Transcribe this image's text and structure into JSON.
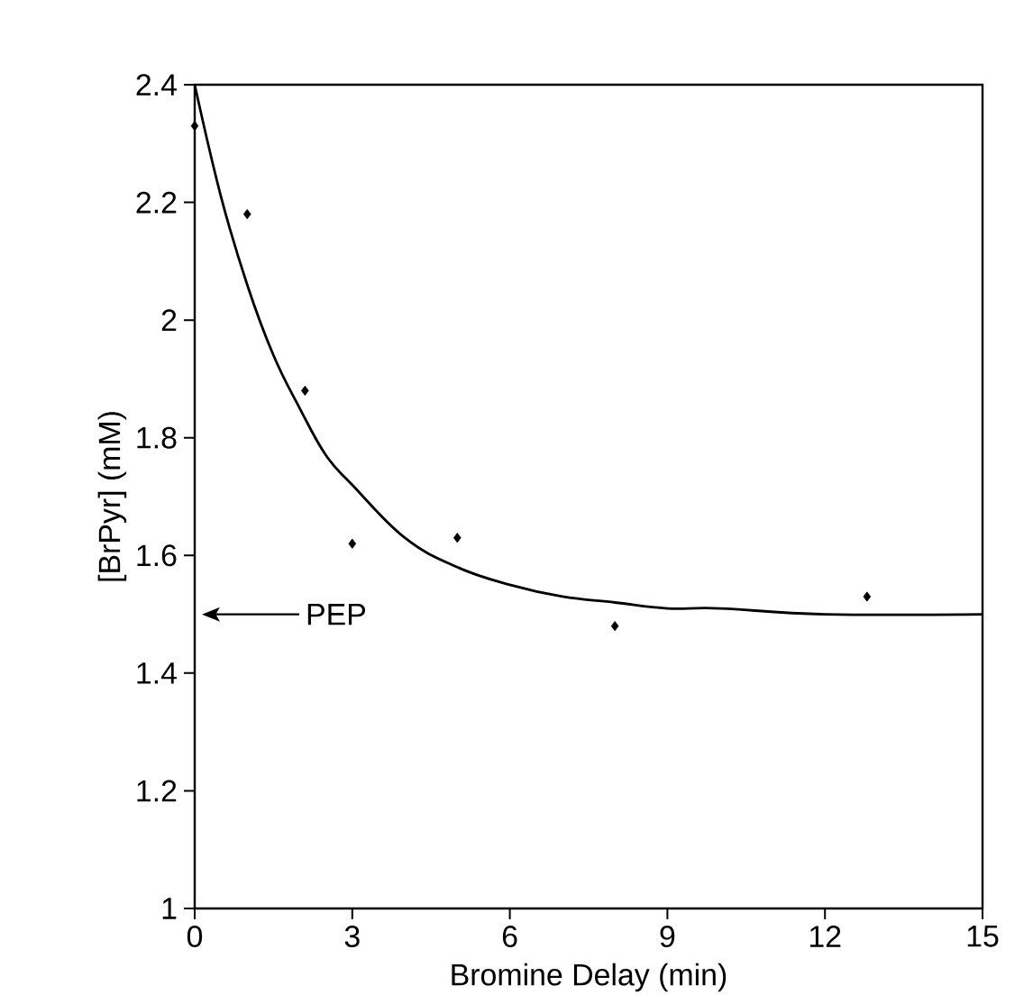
{
  "chart_data": {
    "type": "scatter",
    "xlabel": "Bromine Delay (min)",
    "ylabel": "[BrPyr] (mM)",
    "xlim": [
      0,
      15
    ],
    "xticks": [
      0,
      3,
      6,
      9,
      12,
      15
    ],
    "ylim": [
      1,
      2.4
    ],
    "yticks": [
      1,
      1.2,
      1.4,
      1.6,
      1.8,
      2,
      2.2,
      2.4
    ],
    "grid": false,
    "annotations": [
      "PEP"
    ],
    "series": [
      {
        "marker": "diamond",
        "color": "#000000",
        "x": [
          0,
          1,
          2.1,
          3,
          5,
          8,
          12.8
        ],
        "values": [
          2.33,
          2.18,
          1.88,
          1.62,
          1.63,
          1.48,
          1.53
        ]
      },
      {
        "type": "line",
        "color": "#000000",
        "x": [
          0,
          0.5,
          1,
          1.5,
          2,
          2.5,
          3,
          4,
          5,
          6,
          7,
          8,
          9,
          10,
          12,
          15
        ],
        "values": [
          2.4,
          2.21,
          2.06,
          1.94,
          1.85,
          1.77,
          1.72,
          1.63,
          1.58,
          1.55,
          1.53,
          1.52,
          1.51,
          1.51,
          1.5,
          1.5
        ]
      }
    ]
  }
}
